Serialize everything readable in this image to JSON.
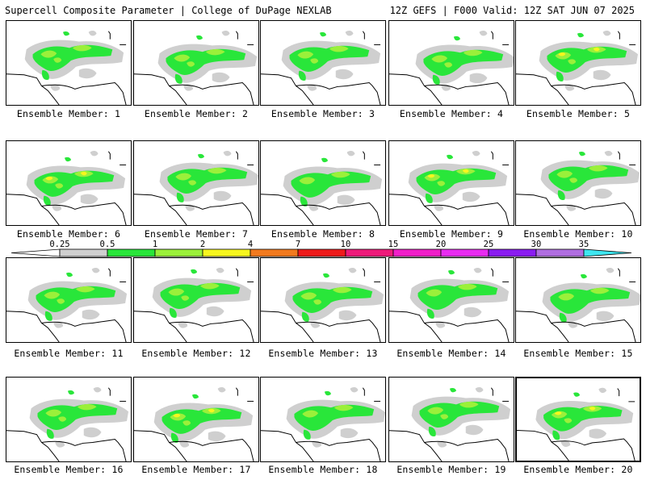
{
  "header": {
    "left_title": "Supercell Composite Parameter | College of DuPage NEXLAB",
    "right_title": "12Z GEFS | F000 Valid: 12Z SAT JUN 07 2025"
  },
  "colorbar": {
    "ticks": [
      "0.25",
      "0.5",
      "1",
      "2",
      "4",
      "7",
      "10",
      "15",
      "20",
      "25",
      "30",
      "35"
    ],
    "colors": [
      "#cfcfcf",
      "#29e63a",
      "#9bf03a",
      "#f6f61e",
      "#f27a1e",
      "#ee1a1a",
      "#ee1a7a",
      "#f01ec9",
      "#e82bf0",
      "#8a1cf0",
      "#b06ee0",
      "#3ee6f0"
    ]
  },
  "map_colors": {
    "gray": "#cfcfcf",
    "green": "#29e63a",
    "lime": "#9bf03a",
    "yellow": "#f6f61e"
  },
  "members": [
    {
      "label": "Ensemble Member: 1",
      "intensity": 1
    },
    {
      "label": "Ensemble Member: 2",
      "intensity": 1
    },
    {
      "label": "Ensemble Member: 3",
      "intensity": 1
    },
    {
      "label": "Ensemble Member: 4",
      "intensity": 1
    },
    {
      "label": "Ensemble Member: 5",
      "intensity": 2
    },
    {
      "label": "Ensemble Member: 6",
      "intensity": 2
    },
    {
      "label": "Ensemble Member: 7",
      "intensity": 1
    },
    {
      "label": "Ensemble Member: 8",
      "intensity": 0
    },
    {
      "label": "Ensemble Member: 9",
      "intensity": 2
    },
    {
      "label": "Ensemble Member: 10",
      "intensity": 1
    },
    {
      "label": "Ensemble Member: 11",
      "intensity": 1
    },
    {
      "label": "Ensemble Member: 12",
      "intensity": 1
    },
    {
      "label": "Ensemble Member: 13",
      "intensity": 1
    },
    {
      "label": "Ensemble Member: 14",
      "intensity": 0
    },
    {
      "label": "Ensemble Member: 15",
      "intensity": 0
    },
    {
      "label": "Ensemble Member: 16",
      "intensity": 1
    },
    {
      "label": "Ensemble Member: 17",
      "intensity": 2
    },
    {
      "label": "Ensemble Member: 18",
      "intensity": 0
    },
    {
      "label": "Ensemble Member: 19",
      "intensity": 1
    },
    {
      "label": "Ensemble Member: 20",
      "intensity": 2
    }
  ]
}
